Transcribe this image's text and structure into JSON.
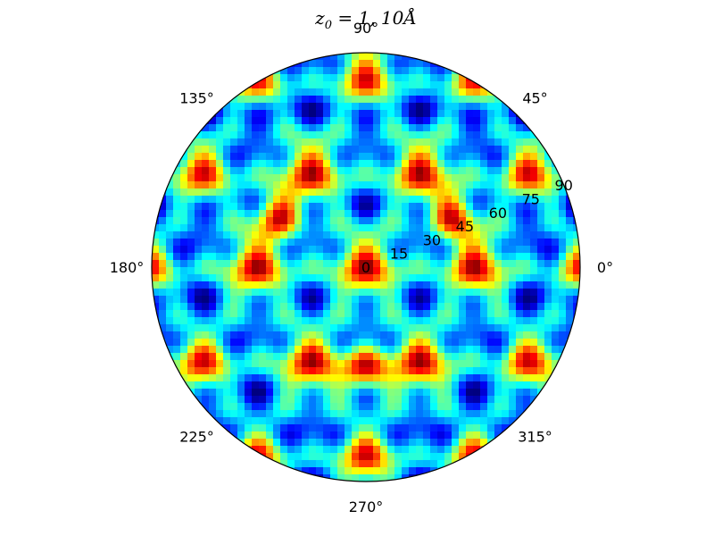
{
  "chart_data": {
    "type": "heatmap",
    "projection": "polar",
    "title_main": "z",
    "title_sub": "0",
    "title_rest": " = 1, 10Å",
    "angular_ticks": [
      "0°",
      "45°",
      "90°",
      "135°",
      "180°",
      "225°",
      "270°",
      "315°"
    ],
    "angular_tick_values": [
      0,
      45,
      90,
      135,
      180,
      225,
      270,
      315
    ],
    "radial_ticks": [
      "0",
      "15",
      "30",
      "45",
      "60",
      "75",
      "90"
    ],
    "radial_tick_values": [
      0,
      15,
      30,
      45,
      60,
      75,
      90
    ],
    "rlim": [
      0,
      90
    ],
    "radial_label_angle_deg": 22.5,
    "colormap": "jet",
    "grid": false,
    "symmetry": "three-fold",
    "hotspots": [
      {
        "azimuth_deg": 30,
        "polar_angle_deg": 44
      },
      {
        "azimuth_deg": 150,
        "polar_angle_deg": 44
      },
      {
        "azimuth_deg": 270,
        "polar_angle_deg": 44
      }
    ]
  }
}
